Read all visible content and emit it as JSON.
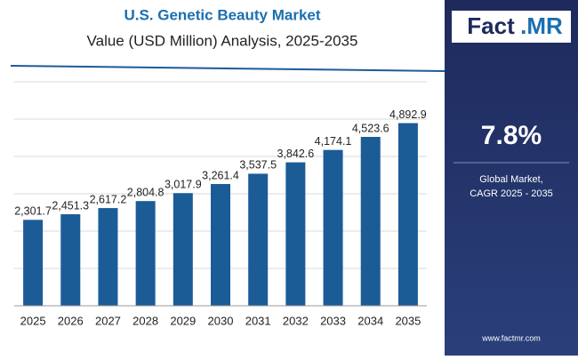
{
  "chart_data": {
    "type": "bar",
    "title": "U.S. Genetic Beauty Market",
    "subtitle": "Value (USD Million) Analysis, 2025-2035",
    "categories": [
      "2025",
      "2026",
      "2027",
      "2028",
      "2029",
      "2030",
      "2031",
      "2032",
      "2033",
      "2034",
      "2035"
    ],
    "values": [
      2301.7,
      2451.3,
      2617.2,
      2804.8,
      3017.9,
      3261.4,
      3537.5,
      3842.6,
      4174.1,
      4523.6,
      4892.9
    ],
    "value_labels": [
      "2,301.7",
      "2,451.3",
      "2,617.2",
      "2,804.8",
      "3,017.9",
      "3,261.4",
      "3,537.5",
      "3,842.6",
      "4,174.1",
      "4,523.6",
      "4,892.9"
    ],
    "color": "#1b5c97",
    "ylim": [
      0,
      6000
    ],
    "yticks": [
      0,
      1000,
      2000,
      3000,
      4000,
      5000,
      6000
    ],
    "grid": true
  },
  "panel": {
    "logo_left": "Fact",
    "logo_right": ".MR",
    "cagr": "7.8%",
    "cagr_caption_1": "Global Market,",
    "cagr_caption_2": "CAGR 2025 - 2035",
    "website": "www.factmr.com"
  }
}
